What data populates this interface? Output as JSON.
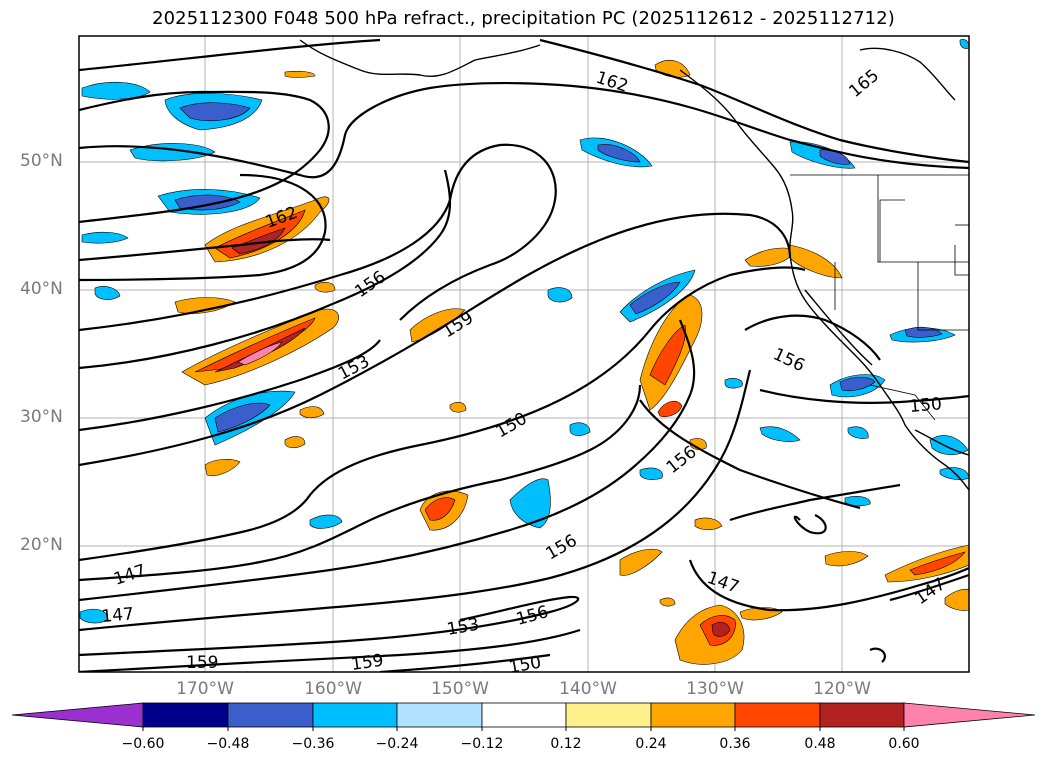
{
  "title": "2025112300 F048 500 hPa refract., precipitation PC (2025112612 - 2025112712)",
  "map": {
    "lat_labels": [
      "50°N",
      "40°N",
      "30°N",
      "20°N"
    ],
    "lon_labels": [
      "170°W",
      "160°W",
      "150°W",
      "140°W",
      "130°W",
      "120°W"
    ],
    "contour_labels": [
      "162",
      "165",
      "162",
      "156",
      "159",
      "153",
      "156",
      "150",
      "150",
      "156",
      "156",
      "147",
      "147",
      "153",
      "156",
      "147",
      "159",
      "159",
      "150",
      "147"
    ]
  },
  "colorbar": {
    "ticks": [
      "−0.60",
      "−0.48",
      "−0.36",
      "−0.24",
      "−0.12",
      "0.12",
      "0.24",
      "0.36",
      "0.48",
      "0.60"
    ],
    "colors": [
      "#9b30d0",
      "#00008b",
      "#3a5fcd",
      "#00bfff",
      "#b0e2ff",
      "#ffffff",
      "#fff08c",
      "#ffa500",
      "#ff4500",
      "#b22222",
      "#ff82ab"
    ]
  }
}
